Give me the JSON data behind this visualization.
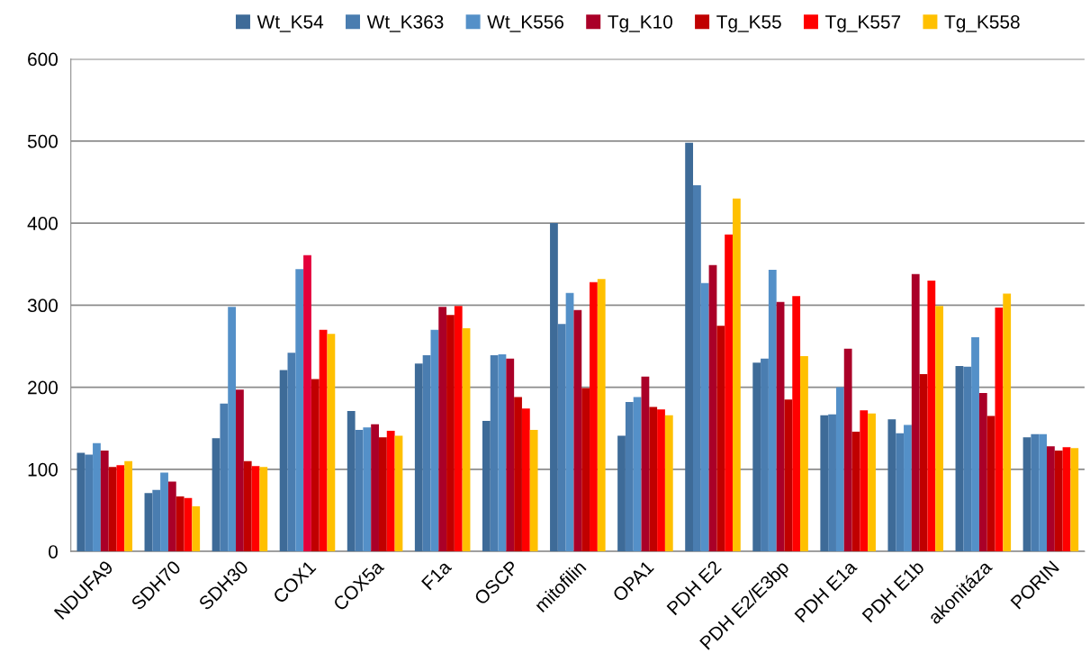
{
  "chart_data": {
    "type": "bar",
    "categories": [
      "NDUFA9",
      "SDH70",
      "SDH30",
      "COX1",
      "COX5a",
      "F1a",
      "OSCP",
      "mitofilin",
      "OPA1",
      "PDH E2",
      "PDH E2/E3bp",
      "PDH E1a",
      "PDH E1b",
      "akonitáza",
      "PORIN"
    ],
    "series": [
      {
        "name": "Wt_K54",
        "color": "#3e6b98",
        "values": [
          120,
          71,
          138,
          221,
          171,
          229,
          159,
          400,
          141,
          498,
          230,
          166,
          161,
          226,
          139
        ]
      },
      {
        "name": "Wt_K363",
        "color": "#4a7db0",
        "values": [
          118,
          75,
          180,
          242,
          148,
          239,
          239,
          277,
          182,
          446,
          235,
          167,
          144,
          225,
          143
        ]
      },
      {
        "name": "Wt_K556",
        "color": "#5490c8",
        "values": [
          132,
          96,
          298,
          344,
          151,
          270,
          240,
          315,
          188,
          327,
          343,
          200,
          154,
          261,
          143
        ]
      },
      {
        "name": "Tg_K10",
        "color": "#aa0028",
        "colors": [
          "#aa0028",
          "#aa0028",
          "#aa0028",
          "#e4003a",
          "#aa0028",
          "#aa0028",
          "#aa0028",
          "#aa0028",
          "#aa0028",
          "#aa0028",
          "#aa0028",
          "#aa0028",
          "#aa0028",
          "#aa0028",
          "#aa0028"
        ],
        "values": [
          123,
          85,
          197,
          361,
          155,
          298,
          235,
          294,
          213,
          349,
          304,
          247,
          338,
          193,
          128
        ]
      },
      {
        "name": "Tg_K55",
        "color": "#c00000",
        "values": [
          103,
          67,
          110,
          210,
          139,
          288,
          188,
          199,
          176,
          275,
          185,
          146,
          216,
          165,
          123
        ]
      },
      {
        "name": "Tg_K557",
        "color": "#ff0000",
        "values": [
          105,
          65,
          104,
          270,
          147,
          299,
          174,
          328,
          173,
          386,
          311,
          172,
          330,
          297,
          127
        ]
      },
      {
        "name": "Tg_K558",
        "color": "#ffc000",
        "values": [
          110,
          55,
          103,
          265,
          141,
          272,
          148,
          332,
          166,
          430,
          238,
          168,
          299,
          314,
          126
        ]
      }
    ],
    "ylim": [
      0,
      600
    ],
    "yticks": [
      0,
      100,
      200,
      300,
      400,
      500,
      600
    ],
    "grid": "y",
    "legend": "top"
  }
}
